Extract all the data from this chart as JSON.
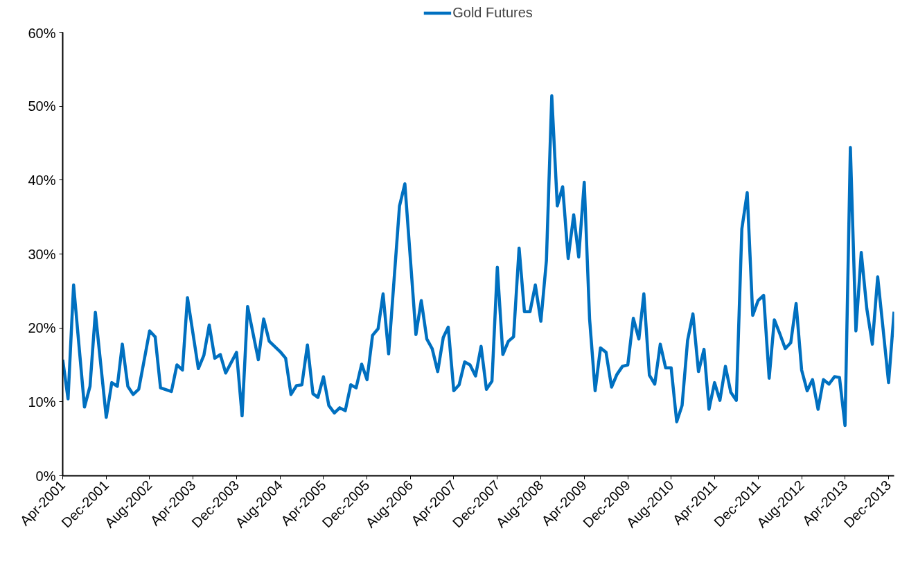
{
  "chart_data": {
    "type": "line",
    "legend": "top",
    "xlim": [
      "2001-04",
      "2014-01"
    ],
    "xticks": [
      {
        "value": "2001-04",
        "label": "Apr-2001"
      },
      {
        "value": "2001-12",
        "label": "Dec-2001"
      },
      {
        "value": "2002-08",
        "label": "Aug-2002"
      },
      {
        "value": "2003-04",
        "label": "Apr-2003"
      },
      {
        "value": "2003-12",
        "label": "Dec-2003"
      },
      {
        "value": "2004-08",
        "label": "Aug-2004"
      },
      {
        "value": "2005-04",
        "label": "Apr-2005"
      },
      {
        "value": "2005-12",
        "label": "Dec-2005"
      },
      {
        "value": "2006-08",
        "label": "Aug-2006"
      },
      {
        "value": "2007-04",
        "label": "Apr-2007"
      },
      {
        "value": "2007-12",
        "label": "Dec-2007"
      },
      {
        "value": "2008-08",
        "label": "Aug-2008"
      },
      {
        "value": "2009-04",
        "label": "Apr-2009"
      },
      {
        "value": "2009-12",
        "label": "Dec-2009"
      },
      {
        "value": "2010-08",
        "label": "Aug-2010"
      },
      {
        "value": "2011-04",
        "label": "Apr-2011"
      },
      {
        "value": "2011-12",
        "label": "Dec-2011"
      },
      {
        "value": "2012-08",
        "label": "Aug-2012"
      },
      {
        "value": "2013-04",
        "label": "Apr-2013"
      },
      {
        "value": "2013-12",
        "label": "Dec-2013"
      }
    ],
    "ylim": [
      0,
      60
    ],
    "yticks": [
      {
        "value": 0,
        "label": "0%"
      },
      {
        "value": 10,
        "label": "10%"
      },
      {
        "value": 20,
        "label": "20%"
      },
      {
        "value": 30,
        "label": "30%"
      },
      {
        "value": 40,
        "label": "40%"
      },
      {
        "value": 50,
        "label": "50%"
      },
      {
        "value": 60,
        "label": "60%"
      }
    ],
    "grid": false,
    "line_style": "solid",
    "series": [
      {
        "name": "Gold Futures",
        "color": "#0070c0",
        "x": [
          "2001-04",
          "2001-05",
          "2001-06",
          "2001-08",
          "2001-09",
          "2001-10",
          "2001-12",
          "2002-01",
          "2002-02",
          "2002-03",
          "2002-04",
          "2002-05",
          "2002-06",
          "2002-08",
          "2002-09",
          "2002-10",
          "2002-12",
          "2003-01",
          "2003-02",
          "2003-03",
          "2003-05",
          "2003-06",
          "2003-07",
          "2003-08",
          "2003-09",
          "2003-10",
          "2003-12",
          "2004-01",
          "2004-02",
          "2004-04",
          "2004-05",
          "2004-06",
          "2004-08",
          "2004-09",
          "2004-10",
          "2004-11",
          "2004-12",
          "2005-01",
          "2005-02",
          "2005-03",
          "2005-04",
          "2005-05",
          "2005-06",
          "2005-07",
          "2005-08",
          "2005-09",
          "2005-10",
          "2005-11",
          "2005-12",
          "2006-01",
          "2006-02",
          "2006-03",
          "2006-04",
          "2006-06",
          "2006-07",
          "2006-09",
          "2006-10",
          "2006-11",
          "2006-12",
          "2007-01",
          "2007-02",
          "2007-03",
          "2007-04",
          "2007-05",
          "2007-06",
          "2007-07",
          "2007-08",
          "2007-09",
          "2007-10",
          "2007-11",
          "2007-12",
          "2008-01",
          "2008-02",
          "2008-03",
          "2008-04",
          "2008-05",
          "2008-06",
          "2008-07",
          "2008-08",
          "2008-09",
          "2008-10",
          "2008-11",
          "2008-12",
          "2009-01",
          "2009-02",
          "2009-03",
          "2009-04",
          "2009-05",
          "2009-06",
          "2009-07",
          "2009-08",
          "2009-09",
          "2009-10",
          "2009-11",
          "2009-12",
          "2010-01",
          "2010-02",
          "2010-03",
          "2010-04",
          "2010-05",
          "2010-06",
          "2010-07",
          "2010-08",
          "2010-09",
          "2010-10",
          "2010-11",
          "2010-12",
          "2011-01",
          "2011-02",
          "2011-03",
          "2011-04",
          "2011-05",
          "2011-06",
          "2011-07",
          "2011-08",
          "2011-09",
          "2011-10",
          "2011-11",
          "2011-12",
          "2012-01",
          "2012-02",
          "2012-03",
          "2012-04",
          "2012-05",
          "2012-06",
          "2012-07",
          "2012-08",
          "2012-09",
          "2012-10",
          "2012-11",
          "2012-12",
          "2013-01",
          "2013-02",
          "2013-03",
          "2013-04",
          "2013-05",
          "2013-06",
          "2013-07",
          "2013-08",
          "2013-09",
          "2013-10",
          "2013-11",
          "2013-12",
          "2014-01"
        ],
        "values": [
          15.7,
          10.4,
          25.8,
          9.3,
          12.1,
          22.1,
          7.9,
          12.6,
          12.1,
          17.8,
          12.1,
          11.0,
          11.7,
          19.6,
          18.8,
          11.9,
          11.4,
          15.0,
          14.3,
          24.1,
          14.5,
          16.3,
          20.4,
          15.9,
          16.4,
          13.9,
          16.7,
          8.1,
          22.9,
          15.7,
          21.2,
          18.2,
          16.8,
          15.9,
          11.0,
          12.2,
          12.3,
          17.7,
          11.1,
          10.6,
          13.4,
          9.5,
          8.5,
          9.2,
          8.8,
          12.3,
          11.9,
          15.1,
          13.0,
          19.0,
          19.9,
          24.6,
          16.5,
          36.5,
          39.5,
          19.1,
          23.7,
          18.5,
          17.2,
          14.1,
          18.7,
          20.1,
          11.5,
          12.3,
          15.4,
          15.0,
          13.5,
          17.5,
          11.7,
          12.8,
          28.2,
          16.4,
          18.2,
          18.8,
          30.8,
          22.2,
          22.2,
          25.8,
          20.9,
          29.1,
          51.4,
          36.5,
          39.1,
          29.4,
          35.3,
          29.6,
          39.7,
          21.2,
          11.5,
          17.3,
          16.7,
          12.0,
          13.7,
          14.8,
          15.0,
          21.3,
          18.5,
          24.6,
          13.6,
          12.4,
          17.8,
          14.6,
          14.6,
          7.3,
          9.5,
          18.3,
          21.9,
          14.1,
          17.1,
          9.0,
          12.6,
          10.2,
          14.8,
          11.3,
          10.2,
          33.4,
          38.3,
          21.7,
          23.7,
          24.4,
          13.2,
          21.1,
          19.2,
          17.2,
          18.0,
          23.3,
          14.3,
          11.5,
          13.0,
          9.0,
          13.0,
          12.4,
          13.4,
          13.3,
          6.8,
          44.4,
          19.6,
          30.2,
          22.6,
          17.8,
          26.9,
          19.7,
          12.6,
          22.2
        ]
      }
    ]
  }
}
